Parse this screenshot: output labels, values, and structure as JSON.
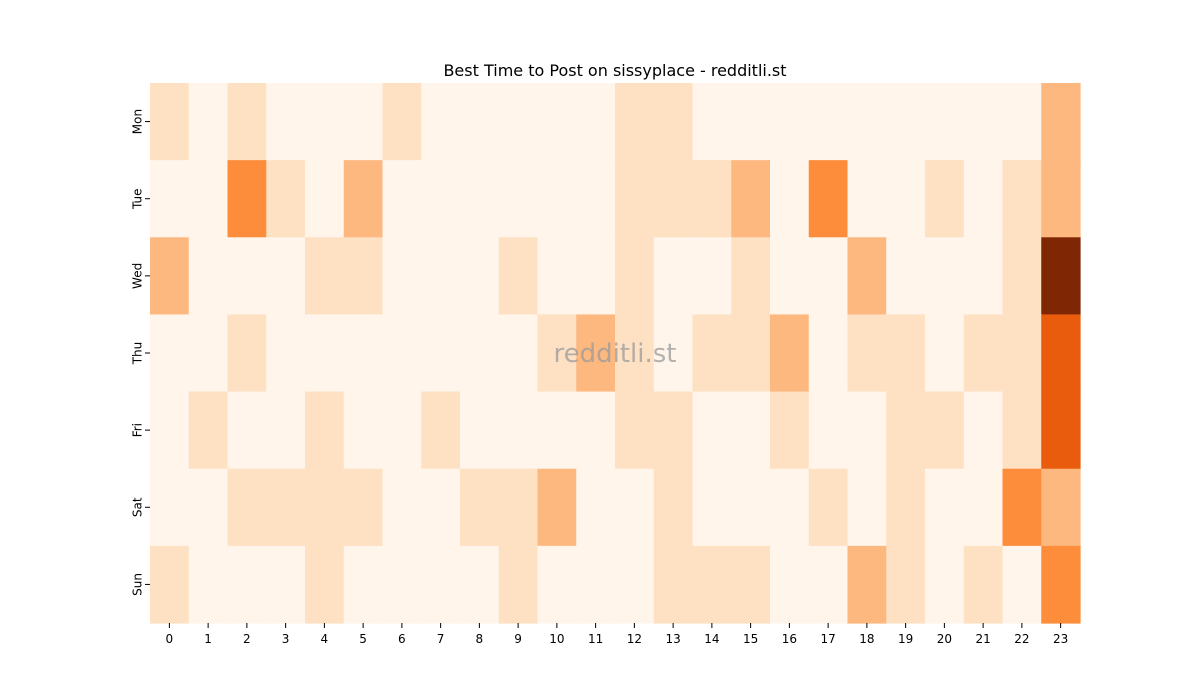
{
  "chart_data": {
    "type": "heatmap",
    "title": "Best Time to Post on sissyplace - redditli.st",
    "xlabel": "",
    "ylabel": "",
    "x_categories": [
      "0",
      "1",
      "2",
      "3",
      "4",
      "5",
      "6",
      "7",
      "8",
      "9",
      "10",
      "11",
      "12",
      "13",
      "14",
      "15",
      "16",
      "17",
      "18",
      "19",
      "20",
      "21",
      "22",
      "23"
    ],
    "y_categories": [
      "Mon",
      "Tue",
      "Wed",
      "Thu",
      "Fri",
      "Sat",
      "Sun"
    ],
    "values": [
      [
        1,
        0,
        1,
        0,
        0,
        0,
        1,
        0,
        0,
        0,
        0,
        0,
        1,
        1,
        0,
        0,
        0,
        0,
        0,
        0,
        0,
        0,
        0,
        2
      ],
      [
        0,
        0,
        3,
        1,
        0,
        2,
        0,
        0,
        0,
        0,
        0,
        0,
        1,
        1,
        1,
        2,
        0,
        3,
        0,
        0,
        1,
        0,
        1,
        2
      ],
      [
        2,
        0,
        0,
        0,
        1,
        1,
        0,
        0,
        0,
        1,
        0,
        0,
        1,
        0,
        0,
        1,
        0,
        0,
        2,
        0,
        0,
        0,
        1,
        6
      ],
      [
        0,
        0,
        1,
        0,
        0,
        0,
        0,
        0,
        0,
        0,
        1,
        2,
        1,
        0,
        1,
        1,
        2,
        0,
        1,
        1,
        0,
        1,
        1,
        4
      ],
      [
        0,
        1,
        0,
        0,
        1,
        0,
        0,
        1,
        0,
        0,
        0,
        0,
        1,
        1,
        0,
        0,
        1,
        0,
        0,
        1,
        1,
        0,
        1,
        4
      ],
      [
        0,
        0,
        1,
        1,
        1,
        1,
        0,
        0,
        1,
        1,
        2,
        0,
        0,
        1,
        0,
        0,
        0,
        1,
        0,
        1,
        0,
        0,
        3,
        2
      ],
      [
        1,
        0,
        0,
        0,
        1,
        0,
        0,
        0,
        0,
        1,
        0,
        0,
        0,
        1,
        1,
        1,
        0,
        0,
        2,
        1,
        0,
        1,
        0,
        3
      ]
    ],
    "colormap": "Oranges",
    "color_scale": [
      "#fff5eb",
      "#fee0c3",
      "#fdb87f",
      "#fd8c3b",
      "#ea5c0d",
      "#ea5c0d",
      "#7f2704"
    ],
    "colorbar": false,
    "watermark": "redditli.st",
    "grid": false,
    "legend": "none"
  }
}
